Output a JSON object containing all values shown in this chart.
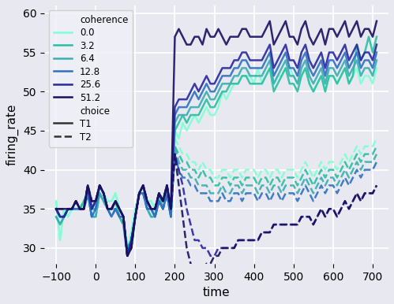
{
  "title": "",
  "xlabel": "time",
  "ylabel": "firing_rate",
  "xlim": [
    -130,
    740
  ],
  "ylim": [
    28,
    61
  ],
  "yticks": [
    30,
    35,
    40,
    45,
    50,
    55,
    60
  ],
  "xticks": [
    -100,
    0,
    100,
    200,
    300,
    400,
    500,
    600,
    700
  ],
  "background_color": "#e8e8f0",
  "grid_color": "#ffffff",
  "coherence_colors": {
    "0.0": "#7fffd4",
    "3.2": "#2abfa0",
    "6.4": "#3aafb0",
    "12.8": "#3070c0",
    "25.6": "#2828a0",
    "51.2": "#1a1060"
  },
  "coherence_levels": [
    "0.0",
    "3.2",
    "6.4",
    "12.8",
    "25.6",
    "51.2"
  ],
  "seed": 42,
  "pre_base": {
    "0.0": [
      36,
      31,
      35,
      34,
      35,
      36,
      35,
      36,
      37,
      35,
      36,
      38,
      37,
      36,
      36,
      37,
      35,
      34,
      30,
      32,
      35,
      37,
      38,
      36,
      36,
      35,
      37,
      36,
      38,
      35
    ],
    "3.2": [
      35,
      34,
      34,
      35,
      35,
      36,
      35,
      36,
      37,
      35,
      35,
      37,
      36,
      35,
      35,
      36,
      34,
      33,
      30,
      31,
      34,
      37,
      38,
      35,
      35,
      34,
      37,
      35,
      37,
      34
    ],
    "6.4": [
      34,
      33,
      34,
      35,
      35,
      35,
      35,
      35,
      37,
      34,
      34,
      37,
      36,
      35,
      35,
      35,
      34,
      33,
      29,
      30,
      34,
      37,
      37,
      35,
      34,
      34,
      36,
      35,
      37,
      34
    ],
    "12.8": [
      35,
      34,
      34,
      35,
      35,
      35,
      35,
      35,
      37,
      34,
      35,
      38,
      37,
      35,
      34,
      35,
      34,
      34,
      29,
      31,
      34,
      37,
      37,
      35,
      35,
      34,
      36,
      35,
      37,
      34
    ],
    "25.6": [
      35,
      34,
      34,
      35,
      35,
      36,
      35,
      35,
      38,
      35,
      36,
      38,
      37,
      35,
      35,
      36,
      35,
      34,
      29,
      31,
      34,
      37,
      38,
      36,
      35,
      35,
      37,
      36,
      38,
      35
    ],
    "51.2": [
      35,
      35,
      35,
      35,
      35,
      36,
      35,
      35,
      38,
      36,
      36,
      38,
      37,
      35,
      35,
      36,
      35,
      34,
      29,
      30,
      34,
      37,
      38,
      36,
      35,
      35,
      37,
      36,
      38,
      35
    ]
  },
  "t1_post": {
    "0.0": [
      45,
      44,
      46,
      45,
      46,
      47,
      46,
      47,
      48,
      47,
      47,
      48,
      50,
      49,
      50,
      51,
      51,
      52,
      52,
      52,
      51,
      53,
      51,
      52,
      53,
      51,
      52,
      52,
      53,
      53,
      52,
      51,
      52,
      53,
      51,
      50,
      51,
      52,
      50,
      52,
      52,
      51,
      52,
      53,
      51,
      52,
      53,
      51,
      52,
      52,
      51,
      53
    ],
    "3.2": [
      45,
      46,
      47,
      46,
      47,
      47,
      47,
      48,
      49,
      48,
      48,
      49,
      50,
      50,
      51,
      51,
      51,
      52,
      52,
      51,
      51,
      51,
      51,
      52,
      53,
      50,
      51,
      52,
      53,
      51,
      51,
      50,
      52,
      53,
      51,
      50,
      51,
      52,
      50,
      52,
      52,
      51,
      52,
      53,
      51,
      52,
      56,
      54,
      55,
      57,
      55,
      57
    ],
    "6.4": [
      46,
      47,
      47,
      47,
      48,
      48,
      48,
      49,
      50,
      49,
      49,
      50,
      51,
      51,
      51,
      52,
      52,
      53,
      53,
      52,
      52,
      52,
      52,
      53,
      54,
      51,
      52,
      53,
      54,
      52,
      52,
      51,
      53,
      54,
      52,
      51,
      52,
      53,
      51,
      53,
      53,
      52,
      53,
      54,
      52,
      53,
      54,
      52,
      53,
      53,
      52,
      54
    ],
    "12.8": [
      47,
      48,
      48,
      48,
      49,
      50,
      49,
      50,
      51,
      50,
      50,
      51,
      52,
      52,
      52,
      53,
      53,
      54,
      54,
      53,
      53,
      53,
      53,
      54,
      55,
      52,
      53,
      54,
      55,
      53,
      53,
      52,
      54,
      55,
      53,
      52,
      53,
      54,
      52,
      54,
      54,
      53,
      54,
      55,
      53,
      54,
      55,
      53,
      54,
      54,
      53,
      55
    ],
    "25.6": [
      48,
      49,
      49,
      49,
      50,
      51,
      50,
      51,
      52,
      51,
      51,
      52,
      53,
      53,
      53,
      54,
      54,
      55,
      55,
      54,
      54,
      54,
      54,
      55,
      56,
      53,
      54,
      55,
      56,
      54,
      54,
      53,
      55,
      56,
      54,
      53,
      54,
      55,
      53,
      55,
      55,
      54,
      55,
      56,
      54,
      55,
      56,
      54,
      55,
      55,
      54,
      56
    ],
    "51.2": [
      57,
      58,
      57,
      56,
      56,
      57,
      57,
      56,
      58,
      57,
      57,
      58,
      57,
      56,
      57,
      57,
      57,
      58,
      58,
      57,
      57,
      57,
      57,
      58,
      59,
      56,
      57,
      58,
      59,
      57,
      57,
      56,
      58,
      59,
      57,
      56,
      57,
      58,
      56,
      58,
      58,
      57,
      58,
      59,
      57,
      58,
      59,
      57,
      58,
      58,
      57,
      59
    ]
  },
  "t2_post": {
    "0.0": [
      44,
      43,
      42,
      42,
      41,
      41,
      40,
      41,
      40,
      40,
      39,
      39,
      40,
      40,
      39,
      40,
      40,
      39,
      40,
      40,
      40,
      39,
      40,
      40,
      39,
      40,
      40,
      39,
      40,
      40,
      40,
      39,
      40,
      41,
      40,
      39,
      40,
      41,
      40,
      41,
      41,
      40,
      41,
      42,
      41,
      42,
      43,
      42,
      43,
      43,
      43,
      44
    ],
    "3.2": [
      43,
      42,
      41,
      41,
      40,
      40,
      39,
      40,
      39,
      39,
      38,
      38,
      39,
      39,
      38,
      39,
      39,
      38,
      39,
      39,
      39,
      38,
      39,
      39,
      38,
      39,
      39,
      38,
      39,
      39,
      39,
      38,
      39,
      40,
      39,
      38,
      39,
      40,
      39,
      40,
      40,
      39,
      40,
      41,
      40,
      41,
      42,
      41,
      42,
      42,
      42,
      43
    ],
    "6.4": [
      43,
      41,
      40,
      40,
      39,
      39,
      38,
      38,
      38,
      37,
      37,
      37,
      38,
      37,
      37,
      38,
      38,
      37,
      38,
      38,
      38,
      37,
      38,
      38,
      37,
      38,
      38,
      37,
      38,
      38,
      38,
      37,
      38,
      39,
      38,
      37,
      38,
      39,
      38,
      39,
      39,
      38,
      39,
      40,
      39,
      40,
      41,
      40,
      41,
      41,
      41,
      42
    ],
    "12.8": [
      42,
      40,
      39,
      39,
      38,
      38,
      37,
      37,
      37,
      36,
      36,
      36,
      37,
      36,
      36,
      37,
      37,
      36,
      37,
      37,
      37,
      36,
      37,
      37,
      36,
      37,
      37,
      36,
      37,
      37,
      37,
      36,
      37,
      38,
      37,
      36,
      37,
      38,
      37,
      38,
      38,
      37,
      38,
      39,
      38,
      39,
      40,
      39,
      40,
      40,
      40,
      41
    ],
    "25.6": [
      42,
      40,
      38,
      35,
      33,
      31,
      31,
      30,
      30,
      29,
      29,
      30,
      30,
      30,
      30,
      30,
      31,
      31,
      31,
      31,
      31,
      31,
      32,
      32,
      32,
      33,
      33,
      33,
      33,
      33,
      33,
      33,
      34,
      34,
      34,
      33,
      34,
      35,
      34,
      35,
      35,
      34,
      35,
      36,
      35,
      36,
      37,
      36,
      37,
      37,
      37,
      38
    ],
    "51.2": [
      42,
      38,
      34,
      30,
      28,
      27,
      27,
      27,
      28,
      28,
      29,
      29,
      30,
      30,
      30,
      30,
      31,
      31,
      31,
      31,
      31,
      31,
      32,
      32,
      32,
      33,
      33,
      33,
      33,
      33,
      33,
      33,
      34,
      34,
      34,
      33,
      34,
      35,
      34,
      35,
      35,
      34,
      35,
      36,
      35,
      36,
      37,
      36,
      37,
      37,
      37,
      38
    ]
  }
}
